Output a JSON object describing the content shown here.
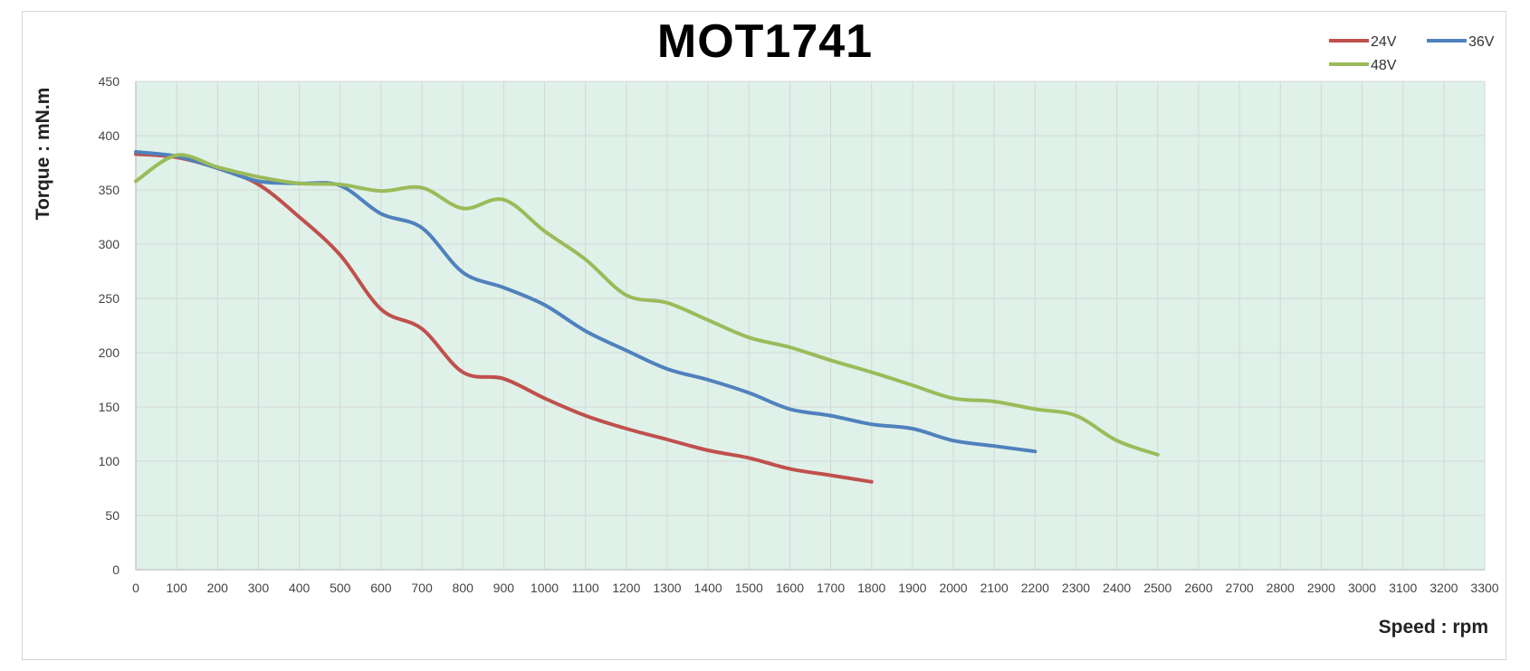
{
  "chart_data": {
    "type": "line",
    "title": "MOT1741",
    "xlabel": "Speed : rpm",
    "ylabel": "Torque : mN.m",
    "xlim": [
      0,
      3300
    ],
    "ylim": [
      0,
      450
    ],
    "xticks": [
      "0",
      "100",
      "200",
      "300",
      "400",
      "500",
      "600",
      "700",
      "800",
      "900",
      "1000",
      "1100",
      "1200",
      "1300",
      "1400",
      "1500",
      "1600",
      "1700",
      "1800",
      "1900",
      "2000",
      "2100",
      "2200",
      "2300",
      "2400",
      "2500",
      "2600",
      "2700",
      "2800",
      "2900",
      "3000",
      "3100",
      "3200",
      "3300"
    ],
    "yticks": [
      "0",
      "50",
      "100",
      "150",
      "200",
      "250",
      "300",
      "350",
      "400",
      "450"
    ],
    "grid": true,
    "legend_position": "top-right",
    "plot_background": "#dff1e9",
    "series": [
      {
        "name": "24V",
        "color": "#c0504d",
        "x": [
          0,
          100,
          200,
          300,
          400,
          500,
          600,
          700,
          800,
          900,
          1000,
          1100,
          1200,
          1300,
          1400,
          1500,
          1600,
          1700,
          1800
        ],
        "y": [
          383,
          380,
          370,
          355,
          325,
          290,
          240,
          222,
          182,
          176,
          158,
          142,
          130,
          120,
          110,
          103,
          93,
          87,
          81
        ]
      },
      {
        "name": "36V",
        "color": "#4f81bd",
        "x": [
          0,
          100,
          200,
          300,
          400,
          500,
          600,
          700,
          800,
          900,
          1000,
          1100,
          1200,
          1300,
          1400,
          1500,
          1600,
          1700,
          1800,
          1900,
          2000,
          2100,
          2200
        ],
        "y": [
          385,
          381,
          370,
          358,
          356,
          354,
          328,
          315,
          274,
          260,
          244,
          220,
          202,
          185,
          175,
          163,
          148,
          142,
          134,
          130,
          119,
          114,
          109
        ]
      },
      {
        "name": "48V",
        "color": "#9bbb59",
        "x": [
          0,
          100,
          200,
          300,
          400,
          500,
          600,
          700,
          800,
          900,
          1000,
          1100,
          1200,
          1300,
          1400,
          1500,
          1600,
          1700,
          1800,
          1900,
          2000,
          2100,
          2200,
          2300,
          2400,
          2500
        ],
        "y": [
          358,
          382,
          371,
          362,
          356,
          355,
          349,
          352,
          333,
          341,
          312,
          286,
          253,
          246,
          230,
          214,
          205,
          193,
          182,
          170,
          158,
          155,
          148,
          142,
          119,
          106
        ]
      }
    ]
  }
}
